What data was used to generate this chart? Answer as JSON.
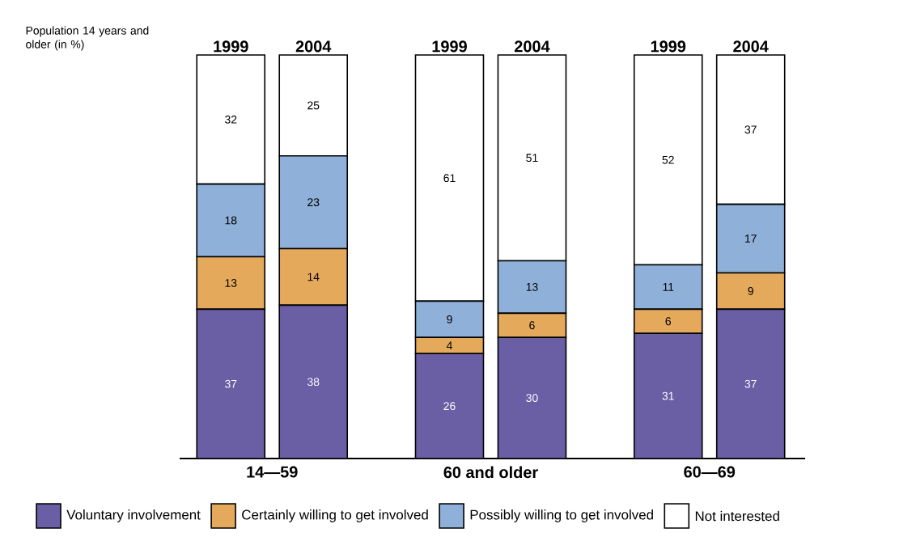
{
  "chart_data": {
    "type": "bar",
    "stacked": true,
    "ylabel": "Population 14 years and older (in %)",
    "categories": [
      "1999",
      "2004",
      "1999",
      "2004",
      "1999",
      "2004"
    ],
    "annotations": [
      "14—59",
      "60 and older",
      "60—69"
    ],
    "series": [
      {
        "name": "Voluntary involvement",
        "color": "#6a5ea5",
        "values": [
          37,
          38,
          26,
          30,
          31,
          37
        ]
      },
      {
        "name": "Certainly willing to get involved",
        "color": "#e5a95c",
        "values": [
          13,
          14,
          4,
          6,
          6,
          9
        ]
      },
      {
        "name": "Possibly willing to get involved",
        "color": "#8fb0d9",
        "values": [
          18,
          23,
          9,
          13,
          11,
          17
        ]
      },
      {
        "name": "Not interested",
        "color": "#ffffff",
        "values": [
          32,
          25,
          61,
          51,
          52,
          37
        ]
      }
    ],
    "data_labels": true,
    "legend": "bottom"
  }
}
